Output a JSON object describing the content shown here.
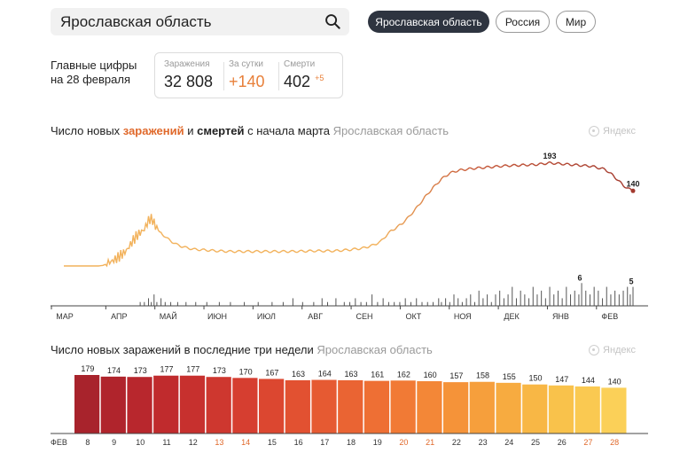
{
  "search": {
    "value": "Ярославская область"
  },
  "regions": [
    {
      "label": "Ярославская область",
      "active": true
    },
    {
      "label": "Россия",
      "active": false
    },
    {
      "label": "Мир",
      "active": false
    }
  ],
  "summary": {
    "label_line1": "Главные цифры",
    "label_line2": "на 28 февраля",
    "infected_label": "Заражения",
    "infected_value": "32 808",
    "daily_label": "За сутки",
    "daily_value": "+140",
    "deaths_label": "Смерти",
    "deaths_value": "402",
    "deaths_delta": "+5"
  },
  "chart1_title": {
    "part1": "Число новых ",
    "part2": "заражений",
    "part3": " и ",
    "part4": "смертей",
    "part5": " с начала марта",
    "region": "Ярославская область"
  },
  "chart2_title": {
    "text": "Число новых заражений в последние три недели",
    "region": "Ярославская область"
  },
  "watermark": "Яндекс",
  "colors": {
    "line": "#a33a2f",
    "line_early": "#f2b25c",
    "deaths": "#555555",
    "accent": "#e0692b"
  },
  "chart_data": [
    {
      "type": "line",
      "title": "Число новых заражений и смертей с начала марта",
      "x_months": [
        "МАР",
        "АПР",
        "МАЙ",
        "ИЮН",
        "ИЮЛ",
        "АВГ",
        "СЕН",
        "ОКТ",
        "НОЯ",
        "ДЕК",
        "ЯНВ",
        "ФЕВ"
      ],
      "series": [
        {
          "name": "заражений",
          "points": [
            [
              0,
              0
            ],
            [
              20,
              0
            ],
            [
              25,
              0
            ],
            [
              28,
              1
            ],
            [
              30,
              3
            ],
            [
              32,
              6
            ],
            [
              34,
              8
            ],
            [
              36,
              11
            ],
            [
              38,
              14
            ],
            [
              40,
              18
            ],
            [
              42,
              22
            ],
            [
              44,
              26
            ],
            [
              46,
              32
            ],
            [
              48,
              40
            ],
            [
              50,
              48
            ],
            [
              52,
              55
            ],
            [
              54,
              60
            ],
            [
              56,
              64
            ],
            [
              58,
              68
            ],
            [
              60,
              80
            ],
            [
              62,
              88
            ],
            [
              64,
              86
            ],
            [
              66,
              74
            ],
            [
              70,
              62
            ],
            [
              74,
              52
            ],
            [
              78,
              45
            ],
            [
              82,
              39
            ],
            [
              88,
              34
            ],
            [
              94,
              31
            ],
            [
              100,
              30
            ],
            [
              110,
              28
            ],
            [
              120,
              27
            ],
            [
              135,
              27
            ],
            [
              150,
              27
            ],
            [
              165,
              27
            ],
            [
              180,
              28
            ],
            [
              195,
              28
            ],
            [
              205,
              30
            ],
            [
              215,
              33
            ],
            [
              222,
              38
            ],
            [
              228,
              45
            ],
            [
              232,
              56
            ],
            [
              236,
              66
            ],
            [
              240,
              72
            ],
            [
              244,
              80
            ],
            [
              248,
              90
            ],
            [
              254,
              108
            ],
            [
              260,
              128
            ],
            [
              266,
              146
            ],
            [
              272,
              162
            ],
            [
              278,
              173
            ],
            [
              284,
              178
            ],
            [
              292,
              181
            ],
            [
              300,
              183
            ],
            [
              310,
              185
            ],
            [
              320,
              187
            ],
            [
              330,
              188
            ],
            [
              340,
              189
            ],
            [
              350,
              192
            ],
            [
              360,
              190
            ],
            [
              370,
              188
            ],
            [
              380,
              186
            ],
            [
              390,
              180
            ],
            [
              395,
              170
            ],
            [
              400,
              158
            ],
            [
              403,
              150
            ],
            [
              406,
              145
            ],
            [
              410,
              140
            ]
          ],
          "x_max": 410,
          "y_max": 200,
          "labels": [
            {
              "x": 350,
              "value": 193
            },
            {
              "x": 410,
              "value": 140
            }
          ]
        },
        {
          "name": "смертей",
          "x_max": 410,
          "y_max": 7,
          "labels": [
            {
              "x": 373,
              "value": 6
            },
            {
              "x": 410,
              "value": 5
            }
          ],
          "bars": [
            [
              55,
              1
            ],
            [
              58,
              1
            ],
            [
              61,
              2
            ],
            [
              63,
              1
            ],
            [
              65,
              3
            ],
            [
              67,
              1
            ],
            [
              70,
              2
            ],
            [
              73,
              1
            ],
            [
              77,
              1
            ],
            [
              82,
              1
            ],
            [
              88,
              1
            ],
            [
              95,
              1
            ],
            [
              103,
              1
            ],
            [
              112,
              1
            ],
            [
              120,
              1
            ],
            [
              130,
              1
            ],
            [
              140,
              1
            ],
            [
              150,
              1
            ],
            [
              158,
              1
            ],
            [
              165,
              2
            ],
            [
              172,
              1
            ],
            [
              180,
              1
            ],
            [
              186,
              2
            ],
            [
              190,
              1
            ],
            [
              196,
              2
            ],
            [
              202,
              1
            ],
            [
              206,
              1
            ],
            [
              210,
              2
            ],
            [
              214,
              1
            ],
            [
              218,
              1
            ],
            [
              222,
              3
            ],
            [
              226,
              1
            ],
            [
              230,
              2
            ],
            [
              234,
              1
            ],
            [
              238,
              1
            ],
            [
              242,
              1
            ],
            [
              246,
              2
            ],
            [
              250,
              1
            ],
            [
              254,
              2
            ],
            [
              258,
              1
            ],
            [
              262,
              1
            ],
            [
              266,
              1
            ],
            [
              270,
              2
            ],
            [
              272,
              1
            ],
            [
              275,
              2
            ],
            [
              278,
              1
            ],
            [
              281,
              3
            ],
            [
              284,
              2
            ],
            [
              287,
              1
            ],
            [
              290,
              2
            ],
            [
              293,
              3
            ],
            [
              296,
              1
            ],
            [
              299,
              4
            ],
            [
              302,
              2
            ],
            [
              305,
              3
            ],
            [
              308,
              1
            ],
            [
              311,
              3
            ],
            [
              314,
              4
            ],
            [
              317,
              2
            ],
            [
              320,
              3
            ],
            [
              323,
              5
            ],
            [
              326,
              2
            ],
            [
              329,
              4
            ],
            [
              332,
              3
            ],
            [
              335,
              2
            ],
            [
              338,
              5
            ],
            [
              341,
              3
            ],
            [
              344,
              4
            ],
            [
              347,
              2
            ],
            [
              350,
              5
            ],
            [
              353,
              3
            ],
            [
              356,
              4
            ],
            [
              359,
              2
            ],
            [
              362,
              5
            ],
            [
              365,
              3
            ],
            [
              368,
              4
            ],
            [
              371,
              3
            ],
            [
              373,
              6
            ],
            [
              376,
              4
            ],
            [
              379,
              3
            ],
            [
              382,
              5
            ],
            [
              385,
              4
            ],
            [
              388,
              2
            ],
            [
              391,
              5
            ],
            [
              394,
              3
            ],
            [
              397,
              4
            ],
            [
              400,
              3
            ],
            [
              403,
              4
            ],
            [
              406,
              5
            ],
            [
              408,
              3
            ],
            [
              410,
              5
            ]
          ]
        }
      ]
    },
    {
      "type": "bar",
      "title": "Число новых заражений в последние три недели",
      "x_prefix": "ФЕВ",
      "categories": [
        "8",
        "9",
        "10",
        "11",
        "12",
        "13",
        "14",
        "15",
        "16",
        "17",
        "18",
        "19",
        "20",
        "21",
        "22",
        "23",
        "24",
        "25",
        "26",
        "27",
        "28"
      ],
      "values": [
        179,
        174,
        173,
        177,
        177,
        173,
        170,
        167,
        163,
        164,
        163,
        161,
        162,
        160,
        157,
        158,
        155,
        150,
        147,
        144,
        140
      ],
      "weekend_days": [
        "13",
        "14",
        "20",
        "21",
        "27",
        "28"
      ],
      "colors": [
        "#a8232c",
        "#b0242c",
        "#b8272d",
        "#c02b2d",
        "#c7302e",
        "#ce372f",
        "#d63e30",
        "#dc4730",
        "#e25131",
        "#e65a32",
        "#ea6433",
        "#ee6f34",
        "#f17a35",
        "#f38737",
        "#f59339",
        "#f69f3c",
        "#f7ab40",
        "#f8b745",
        "#f9c24b",
        "#fac951",
        "#fbd058"
      ]
    }
  ]
}
